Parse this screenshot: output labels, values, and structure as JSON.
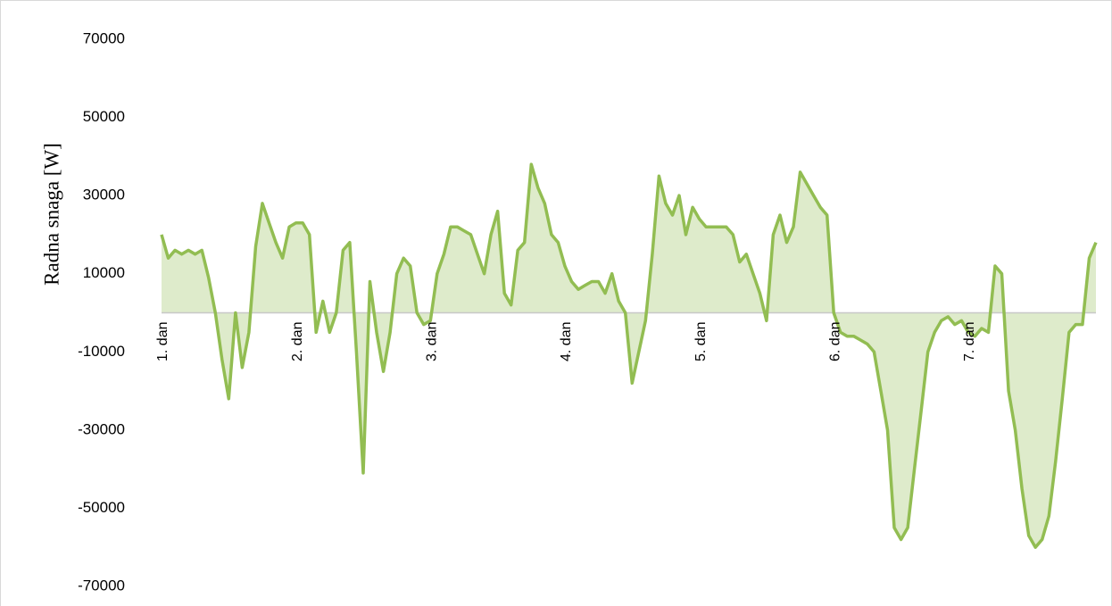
{
  "chart_data": {
    "type": "area",
    "y_label": "Radna snaga [W]",
    "color": "#92bd52",
    "ylim": [
      -70000,
      70000
    ],
    "yticks": [
      70000,
      50000,
      30000,
      10000,
      -10000,
      -30000,
      -50000,
      -70000
    ],
    "categories": [
      "1. dan",
      null,
      null,
      null,
      null,
      null,
      null,
      null,
      null,
      null,
      null,
      null,
      null,
      null,
      null,
      null,
      null,
      null,
      null,
      null,
      "2. dan",
      null,
      null,
      null,
      null,
      null,
      null,
      null,
      null,
      null,
      null,
      null,
      null,
      null,
      null,
      null,
      null,
      null,
      null,
      null,
      "3. dan",
      null,
      null,
      null,
      null,
      null,
      null,
      null,
      null,
      null,
      null,
      null,
      null,
      null,
      null,
      null,
      null,
      null,
      null,
      null,
      "4. dan",
      null,
      null,
      null,
      null,
      null,
      null,
      null,
      null,
      null,
      null,
      null,
      null,
      null,
      null,
      null,
      null,
      null,
      null,
      null,
      "5. dan",
      null,
      null,
      null,
      null,
      null,
      null,
      null,
      null,
      null,
      null,
      null,
      null,
      null,
      null,
      null,
      null,
      null,
      null,
      null,
      "6. dan",
      null,
      null,
      null,
      null,
      null,
      null,
      null,
      null,
      null,
      null,
      null,
      null,
      null,
      null,
      null,
      null,
      null,
      null,
      null,
      "7. dan",
      null,
      null,
      null,
      null,
      null,
      null,
      null,
      null,
      null,
      null,
      null,
      null,
      null,
      null,
      null,
      null,
      null,
      null,
      null
    ],
    "values": [
      20000,
      14000,
      16000,
      15000,
      16000,
      15000,
      16000,
      9000,
      0,
      -12000,
      -22000,
      0,
      -14000,
      -5000,
      17000,
      28000,
      23000,
      18000,
      14000,
      22000,
      23000,
      23000,
      20000,
      -5000,
      3000,
      -5000,
      0,
      16000,
      18000,
      -10000,
      -41000,
      8000,
      -5000,
      -15000,
      -5000,
      10000,
      14000,
      12000,
      0,
      -3000,
      -2000,
      10000,
      15000,
      22000,
      22000,
      21000,
      20000,
      15000,
      10000,
      20000,
      26000,
      5000,
      2000,
      16000,
      18000,
      38000,
      32000,
      28000,
      20000,
      18000,
      12000,
      8000,
      6000,
      7000,
      8000,
      8000,
      5000,
      10000,
      3000,
      0,
      -18000,
      -10000,
      -2000,
      15000,
      35000,
      28000,
      25000,
      30000,
      20000,
      27000,
      24000,
      22000,
      22000,
      22000,
      22000,
      20000,
      13000,
      15000,
      10000,
      5000,
      -2000,
      20000,
      25000,
      18000,
      22000,
      36000,
      33000,
      30000,
      27000,
      25000,
      0,
      -5000,
      -6000,
      -6000,
      -7000,
      -8000,
      -10000,
      -20000,
      -30000,
      -55000,
      -58000,
      -55000,
      -40000,
      -25000,
      -10000,
      -5000,
      -2000,
      -1000,
      -3000,
      -2000,
      -5000,
      -6000,
      -4000,
      -5000,
      12000,
      10000,
      -20000,
      -30000,
      -45000,
      -57000,
      -60000,
      -58000,
      -52000,
      -38000,
      -22000,
      -5000,
      -3000,
      -3000,
      14000,
      18000
    ]
  }
}
